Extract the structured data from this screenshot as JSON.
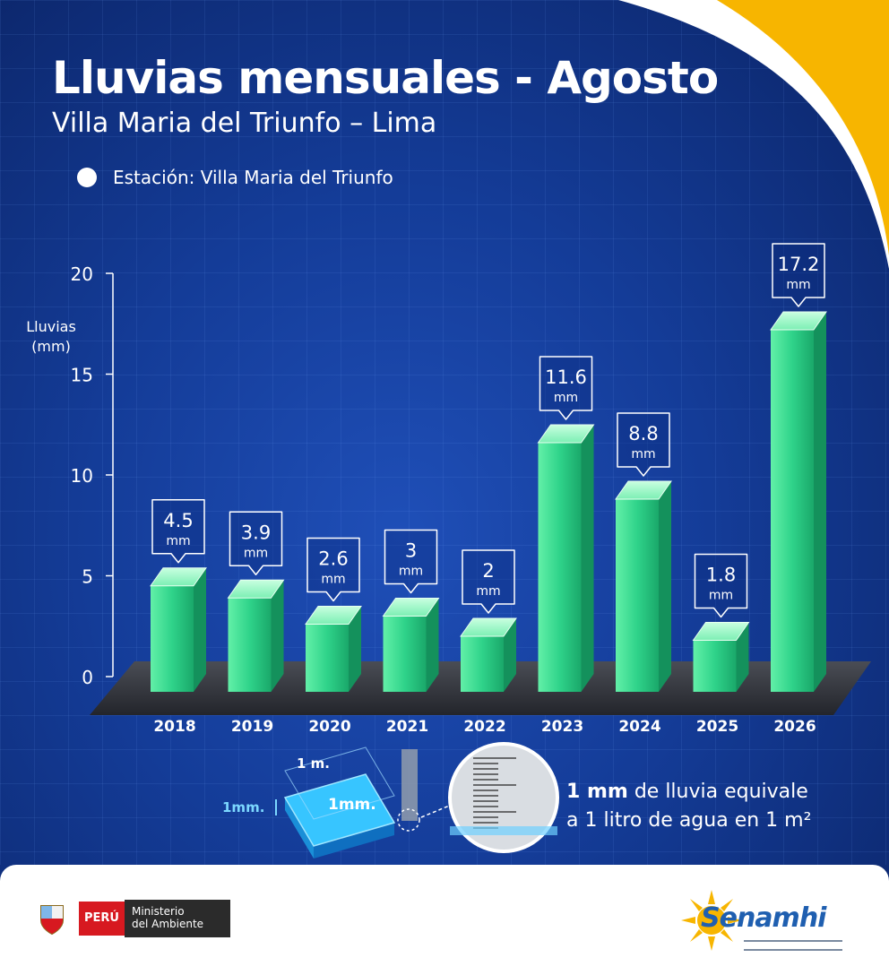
{
  "header": {
    "title": "Lluvias mensuales - Agosto",
    "subtitle": "Villa Maria del Triunfo – Lima",
    "legend": "Estación: Villa Maria del Triunfo"
  },
  "chart_data": {
    "type": "bar",
    "categories": [
      "2018",
      "2019",
      "2020",
      "2021",
      "2022",
      "2023",
      "2024",
      "2025",
      "2026"
    ],
    "values": [
      4.5,
      3.9,
      2.6,
      3,
      2,
      11.6,
      8.8,
      1.8,
      17.2
    ],
    "value_labels": [
      "4.5",
      "3.9",
      "2.6",
      "3",
      "2",
      "11.6",
      "8.8",
      "1.8",
      "17.2"
    ],
    "unit": "mm",
    "ylabel": "Lluvias (mm)",
    "yticks": [
      "0",
      "5",
      "10",
      "15",
      "20"
    ],
    "ylim": [
      0,
      20
    ],
    "bar_color": "#2fd38a",
    "grid": true
  },
  "explanation": {
    "strong": "1 mm",
    "rest_line1": " de lluvia equivale",
    "line2": "a 1 litro de agua en 1 m²",
    "box_label": "1mm.",
    "height_label": "1mm.",
    "side_label": "1 m."
  },
  "footer": {
    "country": "PERÚ",
    "ministry_line1": "Ministerio",
    "ministry_line2": "del Ambiente",
    "brand": "Senamhi"
  },
  "colors": {
    "background": "#143c98",
    "accent": "#f7b500",
    "bar": "#2fd38a"
  }
}
